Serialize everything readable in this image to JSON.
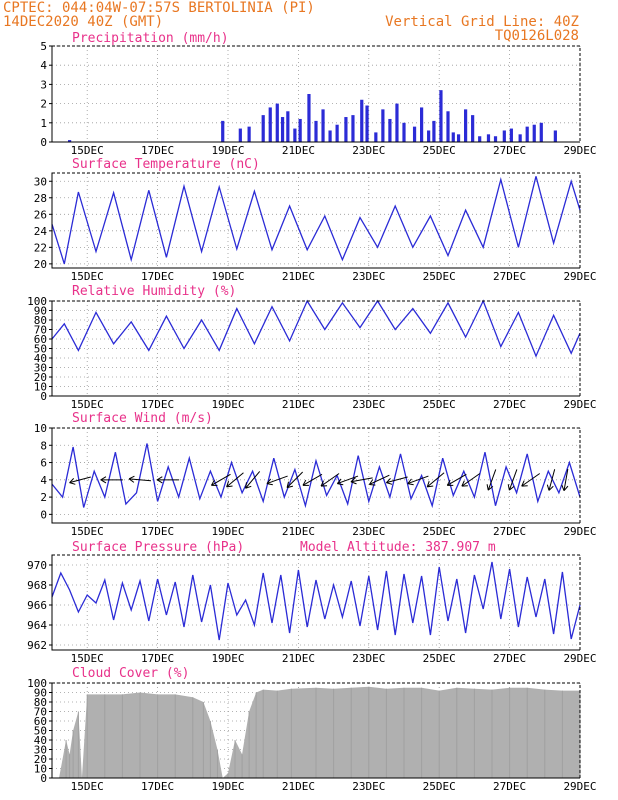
{
  "header": {
    "line1_left": "CPTEC:   044:04W-07:57S   BERTOLINIA (PI)",
    "line2_left": "14DEC2020 40Z (GMT)",
    "line1_right": "Vertical Grid Line: 40Z",
    "line2_right": "TQ0126L028"
  },
  "colors": {
    "header": "#e87722",
    "title": "#e8318a",
    "series": "#2b2bd6",
    "cloud": "#b0b0b0"
  },
  "chart_data": [
    {
      "type": "bar",
      "title": "Precipitation (mm/h)",
      "x_tick_labels": [
        "15DEC",
        "17DEC",
        "19DEC",
        "21DEC",
        "23DEC",
        "25DEC",
        "27DEC",
        "29DEC"
      ],
      "ylim": [
        0,
        5
      ],
      "y_ticks": [
        "0",
        "1",
        "2",
        "3",
        "4",
        "5"
      ],
      "grid": true,
      "x": [
        0.5,
        4.85,
        5.35,
        5.6,
        6.0,
        6.2,
        6.4,
        6.55,
        6.7,
        6.9,
        7.05,
        7.3,
        7.5,
        7.7,
        7.9,
        8.1,
        8.35,
        8.55,
        8.8,
        8.95,
        9.2,
        9.4,
        9.6,
        9.8,
        10.0,
        10.3,
        10.5,
        10.7,
        10.85,
        11.05,
        11.25,
        11.4,
        11.55,
        11.75,
        11.95,
        12.15,
        12.4,
        12.6,
        12.85,
        13.05,
        13.3,
        13.5,
        13.7,
        13.9,
        14.3
      ],
      "values": [
        0.1,
        1.1,
        0.7,
        0.8,
        1.4,
        1.8,
        2.0,
        1.3,
        1.6,
        0.7,
        1.2,
        2.5,
        1.1,
        1.7,
        0.6,
        0.9,
        1.3,
        1.4,
        2.2,
        1.9,
        0.5,
        1.7,
        1.2,
        2.0,
        1.0,
        0.8,
        1.8,
        0.6,
        1.1,
        2.7,
        1.6,
        0.5,
        0.4,
        1.7,
        1.4,
        0.3,
        0.4,
        0.3,
        0.6,
        0.7,
        0.4,
        0.8,
        0.9,
        1.0,
        0.6
      ]
    },
    {
      "type": "line",
      "title": "Surface Temperature (nC)",
      "x_tick_labels": [
        "15DEC",
        "17DEC",
        "19DEC",
        "21DEC",
        "23DEC",
        "25DEC",
        "27DEC",
        "29DEC"
      ],
      "ylim": [
        19.5,
        31
      ],
      "y_ticks": [
        "20",
        "22",
        "24",
        "26",
        "28",
        "30"
      ],
      "grid": true,
      "x": [
        0,
        0.35,
        0.75,
        1.25,
        1.75,
        2.25,
        2.75,
        3.25,
        3.75,
        4.25,
        4.75,
        5.25,
        5.75,
        6.25,
        6.75,
        7.25,
        7.75,
        8.25,
        8.75,
        9.25,
        9.75,
        10.25,
        10.75,
        11.25,
        11.75,
        12.25,
        12.75,
        13.25,
        13.75,
        14.25,
        14.75,
        15.0
      ],
      "values": [
        24.8,
        20.0,
        28.7,
        21.5,
        28.6,
        20.5,
        28.9,
        20.8,
        29.4,
        21.5,
        29.3,
        21.8,
        28.8,
        21.7,
        27.0,
        21.7,
        25.8,
        20.5,
        25.6,
        22.0,
        27.0,
        22.0,
        25.8,
        21.0,
        26.5,
        22.0,
        30.2,
        22.0,
        30.6,
        22.5,
        30.0,
        26.5
      ]
    },
    {
      "type": "line",
      "title": "Relative Humidity (%)",
      "x_tick_labels": [
        "15DEC",
        "17DEC",
        "19DEC",
        "21DEC",
        "23DEC",
        "25DEC",
        "27DEC",
        "29DEC"
      ],
      "ylim": [
        0,
        100
      ],
      "y_ticks": [
        "0",
        "10",
        "20",
        "30",
        "40",
        "50",
        "60",
        "70",
        "80",
        "90",
        "100"
      ],
      "grid": true,
      "x": [
        0,
        0.35,
        0.75,
        1.25,
        1.75,
        2.25,
        2.75,
        3.25,
        3.75,
        4.25,
        4.75,
        5.25,
        5.75,
        6.25,
        6.75,
        7.25,
        7.75,
        8.25,
        8.75,
        9.25,
        9.75,
        10.25,
        10.75,
        11.25,
        11.75,
        12.25,
        12.75,
        13.25,
        13.75,
        14.25,
        14.75,
        15.0
      ],
      "values": [
        60,
        76,
        48,
        88,
        55,
        78,
        48,
        84,
        50,
        80,
        48,
        92,
        55,
        94,
        58,
        100,
        70,
        98,
        72,
        100,
        70,
        92,
        66,
        98,
        62,
        100,
        52,
        88,
        42,
        85,
        45,
        66
      ]
    },
    {
      "type": "line",
      "title": "Surface Wind (m/s)",
      "x_tick_labels": [
        "15DEC",
        "17DEC",
        "19DEC",
        "21DEC",
        "23DEC",
        "25DEC",
        "27DEC",
        "29DEC"
      ],
      "ylim": [
        -1,
        10
      ],
      "y_ticks": [
        "0",
        "2",
        "4",
        "6",
        "8",
        "10"
      ],
      "grid": true,
      "x": [
        0,
        0.3,
        0.6,
        0.9,
        1.2,
        1.5,
        1.8,
        2.1,
        2.4,
        2.7,
        3.0,
        3.3,
        3.6,
        3.9,
        4.2,
        4.5,
        4.8,
        5.1,
        5.4,
        5.7,
        6.0,
        6.3,
        6.6,
        6.9,
        7.2,
        7.5,
        7.8,
        8.1,
        8.4,
        8.7,
        9.0,
        9.3,
        9.6,
        9.9,
        10.2,
        10.5,
        10.8,
        11.1,
        11.4,
        11.7,
        12.0,
        12.3,
        12.6,
        12.9,
        13.2,
        13.5,
        13.8,
        14.1,
        14.4,
        14.7,
        15.0
      ],
      "values": [
        3.5,
        2.0,
        7.8,
        0.8,
        5.0,
        2.0,
        7.2,
        1.2,
        2.5,
        8.2,
        1.5,
        5.5,
        2.0,
        6.5,
        1.8,
        5.0,
        2.0,
        6.0,
        2.5,
        5.0,
        1.5,
        6.5,
        2.0,
        5.2,
        1.0,
        6.2,
        2.2,
        4.5,
        1.2,
        6.8,
        1.5,
        5.5,
        2.0,
        7.0,
        1.8,
        4.5,
        1.0,
        6.5,
        2.2,
        5.0,
        2.0,
        7.2,
        1.0,
        5.5,
        2.5,
        7.0,
        1.5,
        5.0,
        2.5,
        6.0,
        2.0
      ],
      "arrows_deg": [
        195,
        180,
        175,
        180,
        210,
        220,
        230,
        200,
        225,
        210,
        215,
        200,
        190,
        205,
        195,
        200,
        220,
        210,
        215,
        250,
        250,
        215,
        255,
        260
      ],
      "arrow_x": [
        0.8,
        1.7,
        2.5,
        3.3,
        4.8,
        5.2,
        5.7,
        6.4,
        6.9,
        7.4,
        7.9,
        8.4,
        8.8,
        9.3,
        9.8,
        10.4,
        10.9,
        11.5,
        11.9,
        12.5,
        13.1,
        13.6,
        14.2,
        14.6
      ]
    },
    {
      "type": "line",
      "title": "Surface Pressure (hPa)",
      "annotation": "Model Altitude: 387.907 m",
      "x_tick_labels": [
        "15DEC",
        "17DEC",
        "19DEC",
        "21DEC",
        "23DEC",
        "25DEC",
        "27DEC",
        "29DEC"
      ],
      "ylim": [
        961.5,
        971
      ],
      "y_ticks": [
        "962",
        "964",
        "966",
        "968",
        "970"
      ],
      "grid": true,
      "x": [
        0,
        0.25,
        0.5,
        0.75,
        1.0,
        1.25,
        1.5,
        1.75,
        2.0,
        2.25,
        2.5,
        2.75,
        3.0,
        3.25,
        3.5,
        3.75,
        4.0,
        4.25,
        4.5,
        4.75,
        5.0,
        5.25,
        5.5,
        5.75,
        6.0,
        6.25,
        6.5,
        6.75,
        7.0,
        7.25,
        7.5,
        7.75,
        8.0,
        8.25,
        8.5,
        8.75,
        9.0,
        9.25,
        9.5,
        9.75,
        10.0,
        10.25,
        10.5,
        10.75,
        11.0,
        11.25,
        11.5,
        11.75,
        12.0,
        12.25,
        12.5,
        12.75,
        13.0,
        13.25,
        13.5,
        13.75,
        14.0,
        14.25,
        14.5,
        14.75,
        15.0
      ],
      "values": [
        966.8,
        969.2,
        967.5,
        965.3,
        967.0,
        966.2,
        968.5,
        964.5,
        968.2,
        965.5,
        968.4,
        964.4,
        968.6,
        965.0,
        968.3,
        963.8,
        969.0,
        964.3,
        968.0,
        962.5,
        968.2,
        965.0,
        966.5,
        964.0,
        969.2,
        964.2,
        969.0,
        963.2,
        969.5,
        963.8,
        968.5,
        964.6,
        968.0,
        964.8,
        968.4,
        963.9,
        968.9,
        963.5,
        969.4,
        963.0,
        969.1,
        964.2,
        968.9,
        963.0,
        969.8,
        964.4,
        968.6,
        963.2,
        969.0,
        965.6,
        970.3,
        964.6,
        969.6,
        963.8,
        968.8,
        964.8,
        968.6,
        963.1,
        969.3,
        962.6,
        966.0
      ]
    },
    {
      "type": "area",
      "title": "Cloud Cover (%)",
      "x_tick_labels": [
        "15DEC",
        "17DEC",
        "19DEC",
        "21DEC",
        "23DEC",
        "25DEC",
        "27DEC",
        "29DEC"
      ],
      "ylim": [
        0,
        100
      ],
      "y_ticks": [
        "0",
        "10",
        "20",
        "30",
        "40",
        "50",
        "60",
        "70",
        "80",
        "90",
        "100"
      ],
      "grid": true,
      "x": [
        0,
        0.2,
        0.4,
        0.5,
        0.6,
        0.75,
        0.85,
        1.0,
        1.5,
        2.0,
        2.5,
        3.0,
        3.5,
        4.0,
        4.3,
        4.5,
        4.7,
        4.85,
        5.0,
        5.2,
        5.4,
        5.6,
        5.8,
        6.0,
        6.4,
        6.8,
        7.5,
        8.0,
        8.5,
        9.0,
        9.5,
        10.0,
        10.5,
        11.0,
        11.5,
        12.0,
        12.5,
        13.0,
        13.5,
        14.0,
        14.5,
        15.0
      ],
      "values": [
        0,
        0,
        40,
        25,
        50,
        70,
        0,
        88,
        88,
        88,
        90,
        88,
        88,
        85,
        80,
        60,
        30,
        0,
        5,
        40,
        25,
        70,
        90,
        93,
        92,
        94,
        95,
        94,
        95,
        96,
        94,
        95,
        95,
        92,
        95,
        94,
        93,
        95,
        95,
        93,
        92,
        92
      ]
    }
  ]
}
